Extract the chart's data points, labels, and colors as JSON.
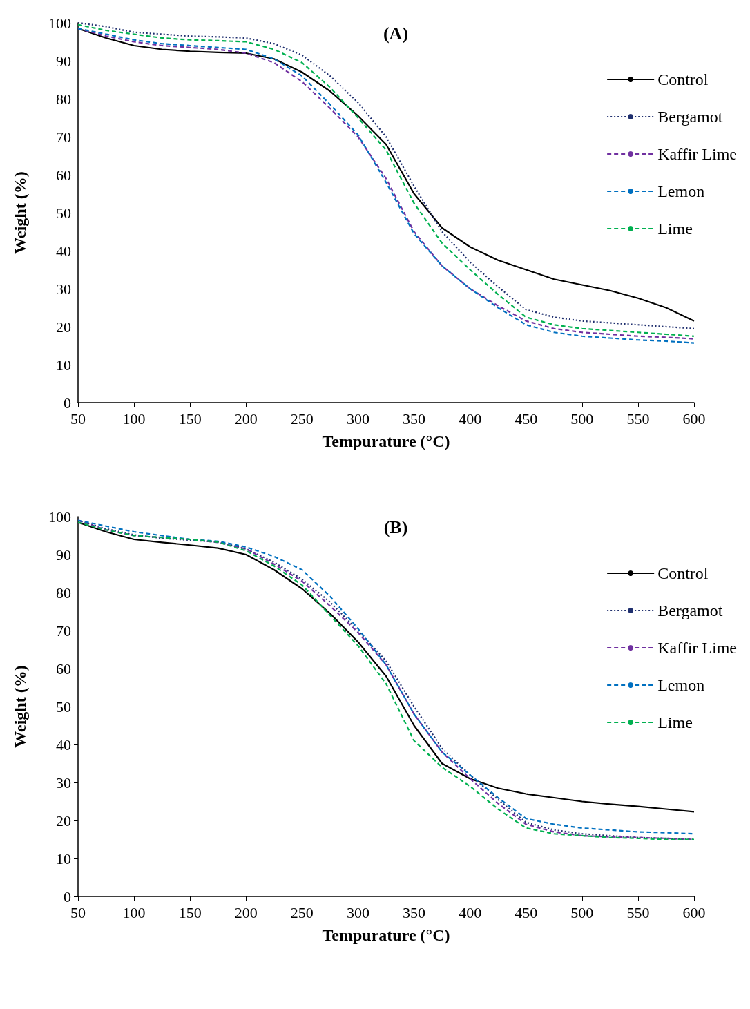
{
  "chart_data": [
    {
      "type": "line",
      "title": "(A)",
      "xlabel": "Tempurature (°C)",
      "ylabel": "Weight (%)",
      "x": [
        50,
        75,
        100,
        125,
        150,
        175,
        200,
        225,
        250,
        275,
        300,
        325,
        350,
        375,
        400,
        425,
        450,
        475,
        500,
        525,
        550,
        575,
        600
      ],
      "xlim": [
        50,
        600
      ],
      "xticks": [
        50,
        100,
        150,
        200,
        250,
        300,
        350,
        400,
        450,
        500,
        550,
        600
      ],
      "ylim": [
        0,
        100
      ],
      "yticks": [
        0,
        10,
        20,
        30,
        40,
        50,
        60,
        70,
        80,
        90,
        100
      ],
      "grid": false,
      "legend": "top right",
      "marker": "none",
      "series": [
        {
          "name": "Control",
          "color": "#000000",
          "line_style": "solid",
          "values": [
            98.5,
            96,
            94,
            93,
            92.5,
            92.2,
            92,
            90.5,
            87,
            82,
            75.5,
            68,
            55,
            46,
            41,
            37.5,
            35,
            32.5,
            31,
            29.5,
            27.5,
            25,
            21.5
          ]
        },
        {
          "name": "Bergamot",
          "color": "#1f2f6e",
          "line_style": "dotted",
          "values": [
            100,
            99,
            97.5,
            97,
            96.5,
            96.3,
            96,
            94.5,
            91.5,
            86,
            79,
            70,
            57,
            45,
            37,
            30.5,
            24.5,
            22.5,
            21.5,
            21,
            20.5,
            20,
            19.5
          ]
        },
        {
          "name": "Kaffir Lime",
          "color": "#7030a0",
          "line_style": "dashed",
          "values": [
            98.5,
            96.5,
            95,
            94,
            93.5,
            93,
            92,
            89.5,
            84.5,
            77.5,
            70,
            59,
            45,
            36,
            30,
            25.5,
            21.5,
            19.5,
            18.5,
            18,
            17.5,
            17.2,
            16.8
          ]
        },
        {
          "name": "Lemon",
          "color": "#0070c0",
          "line_style": "dashed",
          "values": [
            98.5,
            97,
            95.5,
            94.5,
            94,
            93.5,
            93,
            90.5,
            86,
            78.5,
            70.5,
            58,
            44.5,
            36,
            30,
            25,
            20.5,
            18.5,
            17.5,
            17,
            16.5,
            16.2,
            15.7
          ]
        },
        {
          "name": "Lime",
          "color": "#00b050",
          "line_style": "dashed",
          "values": [
            99.5,
            98,
            97,
            96,
            95.5,
            95.3,
            95,
            93,
            89.5,
            83,
            75,
            66.5,
            52.5,
            42,
            35,
            28.5,
            22.5,
            20.5,
            19.5,
            19,
            18.5,
            18,
            17.5
          ]
        }
      ]
    },
    {
      "type": "line",
      "title": "(B)",
      "xlabel": "Tempurature (°C)",
      "ylabel": "Weight (%)",
      "x": [
        50,
        75,
        100,
        125,
        150,
        175,
        200,
        225,
        250,
        275,
        300,
        325,
        350,
        375,
        400,
        425,
        450,
        475,
        500,
        525,
        550,
        575,
        600
      ],
      "xlim": [
        50,
        600
      ],
      "xticks": [
        50,
        100,
        150,
        200,
        250,
        300,
        350,
        400,
        450,
        500,
        550,
        600
      ],
      "ylim": [
        0,
        100
      ],
      "yticks": [
        0,
        10,
        20,
        30,
        40,
        50,
        60,
        70,
        80,
        90,
        100
      ],
      "grid": false,
      "legend": "top right",
      "marker": "none",
      "series": [
        {
          "name": "Control",
          "color": "#000000",
          "line_style": "solid",
          "values": [
            98.5,
            96,
            94,
            93.2,
            92.5,
            91.7,
            90,
            86,
            81,
            74.5,
            67,
            58,
            45,
            35,
            31,
            28.5,
            27,
            26,
            25,
            24.3,
            23.7,
            23,
            22.3
          ]
        },
        {
          "name": "Bergamot",
          "color": "#1f2f6e",
          "line_style": "dotted",
          "values": [
            99,
            96.8,
            95.2,
            94.3,
            93.8,
            93.3,
            91.5,
            88,
            83.5,
            77.5,
            70,
            62,
            50,
            39,
            32,
            25.5,
            19.5,
            17.5,
            16.5,
            16,
            15.5,
            15.3,
            15
          ]
        },
        {
          "name": "Kaffir Lime",
          "color": "#7030a0",
          "line_style": "dashed",
          "values": [
            99,
            96.5,
            95,
            94.5,
            94,
            93.2,
            91.5,
            87.5,
            83,
            76.5,
            69.5,
            61,
            48,
            38,
            31,
            24.5,
            19,
            17,
            16,
            15.7,
            15.5,
            15.3,
            15
          ]
        },
        {
          "name": "Lemon",
          "color": "#0070c0",
          "line_style": "dashed",
          "values": [
            99,
            97.5,
            96,
            95,
            94,
            93.5,
            92,
            89.5,
            86,
            79,
            70.5,
            61,
            48,
            38,
            32,
            26,
            20.5,
            19,
            18,
            17.5,
            17,
            16.8,
            16.5
          ]
        },
        {
          "name": "Lime",
          "color": "#00b050",
          "line_style": "dashed",
          "values": [
            98.5,
            96.5,
            95,
            94.5,
            94,
            93.3,
            91,
            87,
            82,
            74,
            66,
            56,
            41,
            34,
            29,
            23,
            18,
            16.5,
            16,
            15.5,
            15.3,
            15,
            15
          ]
        }
      ]
    }
  ]
}
